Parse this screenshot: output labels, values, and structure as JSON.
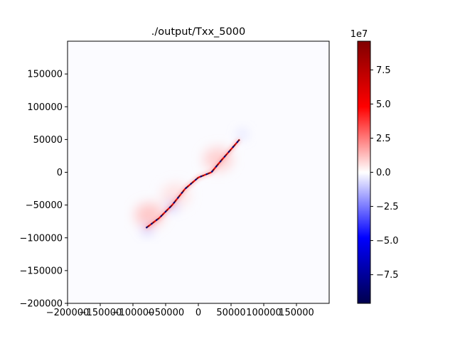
{
  "chart_data": {
    "type": "heatmap",
    "title": "./output/Txx_5000",
    "xlabel": "",
    "ylabel": "",
    "xlim": [
      -200000,
      200000
    ],
    "ylim": [
      -200000,
      200000
    ],
    "x_ticks": [
      -200000,
      -150000,
      -100000,
      -50000,
      0,
      50000,
      100000,
      150000
    ],
    "x_tick_labels": [
      "−200000",
      "−150000",
      "−100000",
      "−50000",
      "0",
      "50000",
      "100000",
      "150000"
    ],
    "y_ticks": [
      -200000,
      -150000,
      -100000,
      -50000,
      0,
      50000,
      100000,
      150000
    ],
    "y_tick_labels": [
      "−200000",
      "−150000",
      "−100000",
      "−50000",
      "0",
      "50000",
      "100000",
      "150000"
    ],
    "colormap": "seismic",
    "colorbar": {
      "multiplier_label": "1e7",
      "vmin": -9.6,
      "vmax": 9.6,
      "ticks": [
        -7.5,
        -5.0,
        -2.5,
        0.0,
        2.5,
        5.0,
        7.5
      ],
      "tick_labels": [
        "−7.5",
        "−5.0",
        "−2.5",
        "0.0",
        "2.5",
        "5.0",
        "7.5"
      ]
    },
    "field_features": {
      "fault_trace": [
        [
          -80000,
          -85000
        ],
        [
          -60000,
          -70000
        ],
        [
          -40000,
          -50000
        ],
        [
          -20000,
          -25000
        ],
        [
          0,
          -8000
        ],
        [
          20000,
          0
        ],
        [
          35000,
          18000
        ],
        [
          50000,
          35000
        ],
        [
          63000,
          50000
        ]
      ],
      "fault_value_range": [
        -9.6,
        9.6
      ],
      "positive_lobes": [
        {
          "center": [
            -75000,
            -65000
          ],
          "value": 1.2
        },
        {
          "center": [
            30000,
            20000
          ],
          "value": 1.0
        },
        {
          "center": [
            -35000,
            -35000
          ],
          "value": 0.6
        }
      ],
      "negative_spots": [
        {
          "center": [
            -40000,
            -52000
          ],
          "value": -3.0
        },
        {
          "center": [
            -78000,
            -88000
          ],
          "value": -2.2
        },
        {
          "center": [
            67000,
            58000
          ],
          "value": -1.2
        }
      ],
      "background_value": -0.05
    }
  }
}
